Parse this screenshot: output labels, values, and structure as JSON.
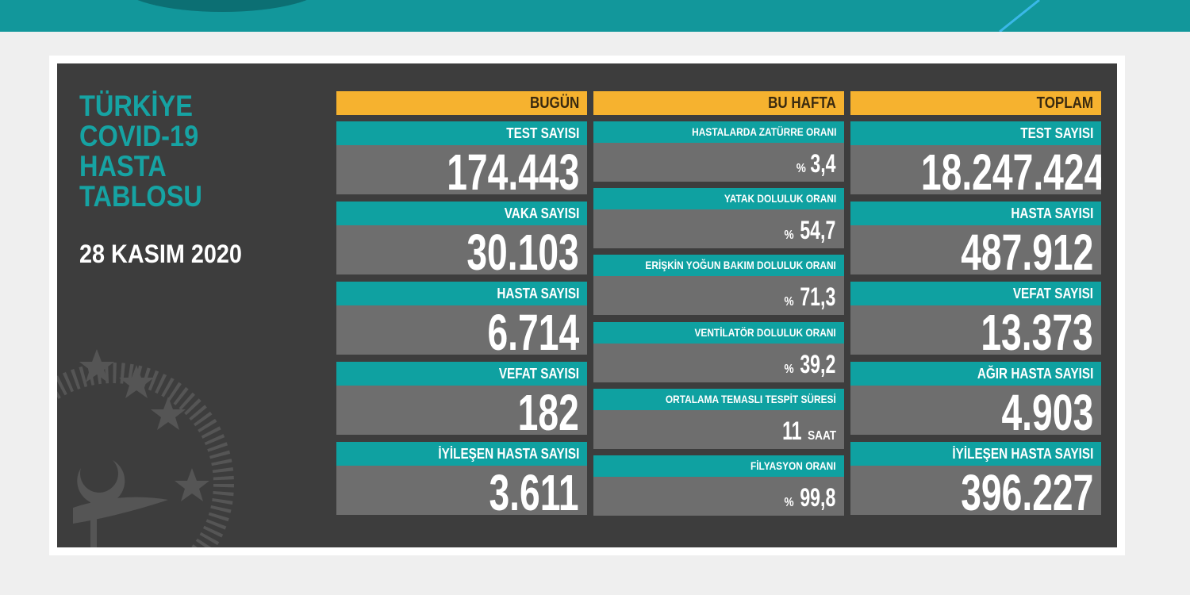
{
  "header": {
    "title_lines": [
      "TÜRKİYE",
      "COVID-19",
      "HASTA",
      "TABLOSU"
    ],
    "date": "28 KASIM 2020"
  },
  "columns": [
    {
      "title": "BUGÜN",
      "items": [
        {
          "label": "TEST SAYISI",
          "value": "174.443"
        },
        {
          "label": "VAKA SAYISI",
          "value": "30.103"
        },
        {
          "label": "HASTA SAYISI",
          "value": "6.714"
        },
        {
          "label": "VEFAT SAYISI",
          "value": "182"
        },
        {
          "label": "İYİLEŞEN HASTA SAYISI",
          "value": "3.611"
        }
      ]
    },
    {
      "title": "BU HAFTA",
      "items": [
        {
          "label": "HASTALARDA ZATÜRRE ORANI",
          "prefix": "%",
          "value": "3,4"
        },
        {
          "label": "YATAK DOLULUK ORANI",
          "prefix": "%",
          "value": "54,7"
        },
        {
          "label": "ERİŞKİN YOĞUN BAKIM DOLULUK ORANI",
          "prefix": "%",
          "value": "71,3"
        },
        {
          "label": "VENTİLATÖR DOLULUK ORANI",
          "prefix": "%",
          "value": "39,2"
        },
        {
          "label": "ORTALAMA TEMASLI TESPİT SÜRESİ",
          "value": "11",
          "unit": "SAAT"
        },
        {
          "label": "FİLYASYON ORANI",
          "prefix": "%",
          "value": "99,8"
        }
      ]
    },
    {
      "title": "TOPLAM",
      "items": [
        {
          "label": "TEST SAYISI",
          "value": "18.247.424"
        },
        {
          "label": "HASTA SAYISI",
          "value": "487.912"
        },
        {
          "label": "VEFAT SAYISI",
          "value": "13.373"
        },
        {
          "label": "AĞIR HASTA SAYISI",
          "value": "4.903"
        },
        {
          "label": "İYİLEŞEN HASTA SAYISI",
          "value": "396.227"
        }
      ]
    }
  ]
}
